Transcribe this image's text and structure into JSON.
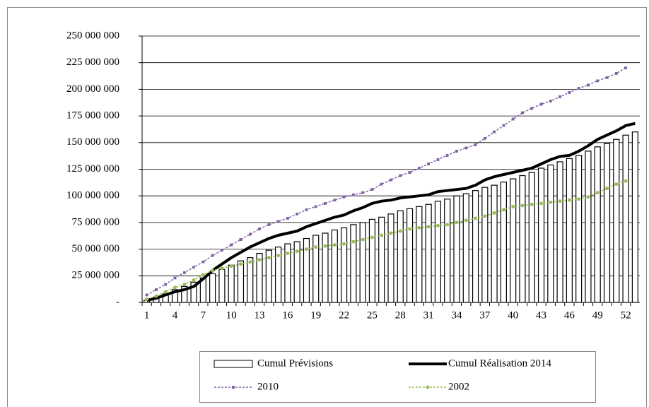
{
  "chart_data": {
    "type": "combo",
    "categories": [
      "1",
      null,
      null,
      "4",
      null,
      null,
      "7",
      null,
      null,
      "10",
      null,
      null,
      "13",
      null,
      null,
      "16",
      null,
      null,
      "19",
      null,
      null,
      "22",
      null,
      null,
      "25",
      null,
      null,
      "28",
      null,
      null,
      "31",
      null,
      null,
      "34",
      null,
      null,
      "37",
      null,
      null,
      "40",
      null,
      null,
      "43",
      null,
      null,
      "46",
      null,
      null,
      "49",
      null,
      null,
      "52",
      null
    ],
    "ylim": [
      0,
      250000000
    ],
    "yticks": [
      {
        "value": 0,
        "label": "-"
      },
      {
        "value": 25000000,
        "label": "25 000 000"
      },
      {
        "value": 50000000,
        "label": "50 000 000"
      },
      {
        "value": 75000000,
        "label": "75 000 000"
      },
      {
        "value": 100000000,
        "label": "100 000 000"
      },
      {
        "value": 125000000,
        "label": "125 000 000"
      },
      {
        "value": 150000000,
        "label": "150 000 000"
      },
      {
        "value": 175000000,
        "label": "175 000 000"
      },
      {
        "value": 200000000,
        "label": "200 000 000"
      },
      {
        "value": 225000000,
        "label": "225 000 000"
      },
      {
        "value": 250000000,
        "label": "250 000 000"
      }
    ],
    "grid": true,
    "legend": "bottom",
    "series": [
      {
        "name": "Cumul Prévisions",
        "type": "bar",
        "color": "#ffffff",
        "values": [
          2000000,
          5000000,
          8000000,
          12000000,
          15000000,
          19000000,
          23000000,
          27000000,
          31000000,
          35000000,
          39000000,
          42000000,
          46000000,
          49000000,
          52000000,
          55000000,
          57000000,
          60000000,
          63000000,
          65000000,
          68000000,
          70000000,
          73000000,
          75000000,
          78000000,
          80000000,
          83000000,
          86000000,
          88000000,
          90000000,
          92000000,
          95000000,
          97000000,
          100000000,
          102000000,
          105000000,
          108000000,
          110000000,
          113000000,
          116000000,
          119000000,
          122000000,
          126000000,
          129000000,
          132000000,
          135000000,
          138000000,
          142000000,
          146000000,
          149000000,
          153000000,
          157000000,
          160000000
        ]
      },
      {
        "name": "Cumul Réalisation 2014",
        "type": "line",
        "color": "#000000",
        "values": [
          2000000,
          4000000,
          7000000,
          10000000,
          12000000,
          15000000,
          22000000,
          30000000,
          36000000,
          42000000,
          47000000,
          52000000,
          56000000,
          60000000,
          63000000,
          65000000,
          67000000,
          71000000,
          74000000,
          77000000,
          80000000,
          82000000,
          86000000,
          89000000,
          93000000,
          95000000,
          96000000,
          98000000,
          99000000,
          100000000,
          101000000,
          104000000,
          105000000,
          106000000,
          107000000,
          110000000,
          115000000,
          118000000,
          120000000,
          122000000,
          124000000,
          126000000,
          130000000,
          134000000,
          137000000,
          138000000,
          142000000,
          147000000,
          153000000,
          157000000,
          161000000,
          166000000,
          168000000
        ]
      },
      {
        "name": "2010",
        "type": "line",
        "line_style": "dashed",
        "marker": "square",
        "color": "#8064a2",
        "values": [
          7000000,
          12000000,
          17000000,
          23000000,
          28000000,
          33000000,
          38000000,
          44000000,
          49000000,
          54000000,
          59000000,
          64000000,
          69000000,
          73000000,
          76000000,
          79000000,
          83000000,
          87000000,
          90000000,
          93000000,
          96000000,
          99000000,
          101000000,
          103000000,
          106000000,
          111000000,
          115000000,
          119000000,
          122000000,
          126000000,
          130000000,
          134000000,
          138000000,
          142000000,
          145000000,
          148000000,
          154000000,
          160000000,
          166000000,
          172000000,
          178000000,
          182000000,
          186000000,
          189000000,
          193000000,
          197000000,
          201000000,
          204000000,
          208000000,
          211000000,
          215000000,
          220000000,
          null
        ]
      },
      {
        "name": "2002",
        "type": "line",
        "line_style": "dashed",
        "marker": "circle",
        "color": "#9bbb59",
        "values": [
          3000000,
          6000000,
          10000000,
          14000000,
          17000000,
          21000000,
          26000000,
          30000000,
          32000000,
          34000000,
          36000000,
          38000000,
          40000000,
          42000000,
          44000000,
          46000000,
          48000000,
          50000000,
          52000000,
          53000000,
          54000000,
          55000000,
          57000000,
          59000000,
          61000000,
          63000000,
          65000000,
          67000000,
          69000000,
          70000000,
          71000000,
          72000000,
          73000000,
          75000000,
          77000000,
          79000000,
          81000000,
          84000000,
          87000000,
          90000000,
          91000000,
          92000000,
          93000000,
          94000000,
          95000000,
          96000000,
          97000000,
          99000000,
          103000000,
          107000000,
          111000000,
          114000000,
          null
        ]
      }
    ]
  }
}
